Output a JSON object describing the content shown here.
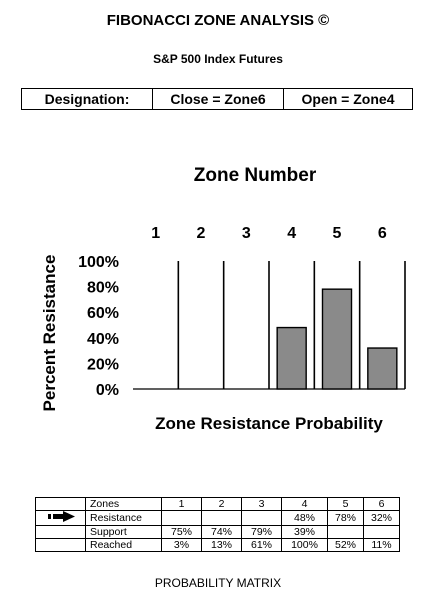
{
  "header": {
    "title": "FIBONACCI ZONE ANALYSIS ©",
    "subtitle": "S&P 500 Index Futures"
  },
  "designation": {
    "label": "Designation:",
    "close": "Close = Zone6",
    "open": "Open = Zone4"
  },
  "chart_data": {
    "type": "bar",
    "title": "Zone Number",
    "xlabel": "Zone Resistance Probability",
    "ylabel": "Percent Resistance",
    "categories": [
      "1",
      "2",
      "3",
      "4",
      "5",
      "6"
    ],
    "values": [
      0,
      0,
      0,
      48,
      78,
      32
    ],
    "ylim": [
      0,
      100
    ],
    "yticks": [
      "0%",
      "20%",
      "40%",
      "60%",
      "80%",
      "100%"
    ],
    "grid": false,
    "bar_color": "#8a8a8a"
  },
  "matrix": {
    "columns": [
      "Zones",
      "1",
      "2",
      "3",
      "4",
      "5",
      "6"
    ],
    "rows": [
      {
        "label": "Resistance",
        "values": [
          "",
          "",
          "",
          "48%",
          "78%",
          "32%"
        ]
      },
      {
        "label": "Support",
        "values": [
          "75%",
          "74%",
          "79%",
          "39%",
          "",
          ""
        ]
      },
      {
        "label": "Reached",
        "values": [
          "3%",
          "13%",
          "61%",
          "100%",
          "52%",
          "11%"
        ]
      }
    ]
  },
  "footer": "PROBABILITY MATRIX"
}
